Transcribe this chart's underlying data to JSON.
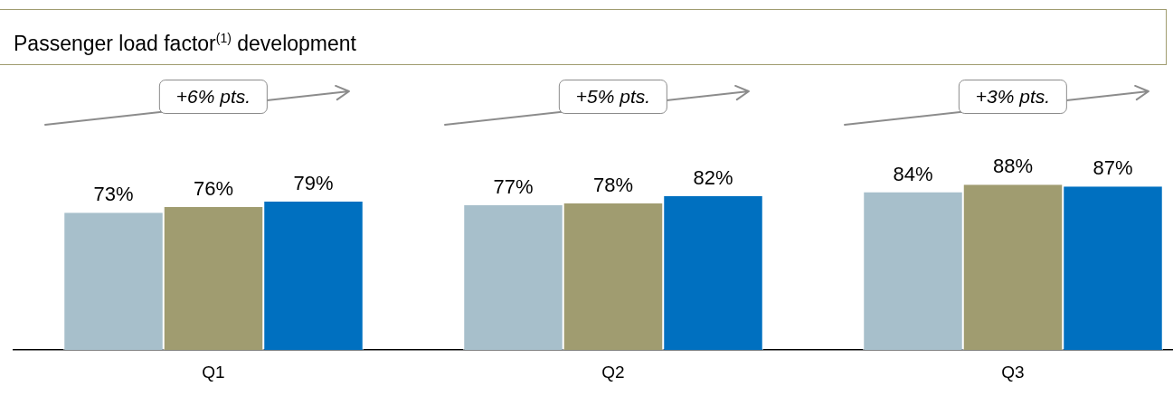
{
  "chart_data": {
    "type": "bar",
    "title": "Passenger load factor$^{(1)}$ development",
    "categories": [
      "Q1",
      "Q2",
      "Q3"
    ],
    "series": [
      {
        "color": "#a7bfcb",
        "values": [
          73,
          77,
          84
        ],
        "value_labels": [
          "73%",
          "77%",
          "84%"
        ]
      },
      {
        "color": "#a09c70",
        "values": [
          76,
          78,
          88
        ],
        "value_labels": [
          "76%",
          "78%",
          "88%"
        ]
      },
      {
        "color": "#0070c0",
        "values": [
          79,
          82,
          87
        ],
        "value_labels": [
          "79%",
          "82%",
          "87%"
        ]
      }
    ],
    "annotations": [
      "+6% pts.",
      "+5% pts.",
      "+3% pts."
    ],
    "grid": false,
    "legend": false
  }
}
